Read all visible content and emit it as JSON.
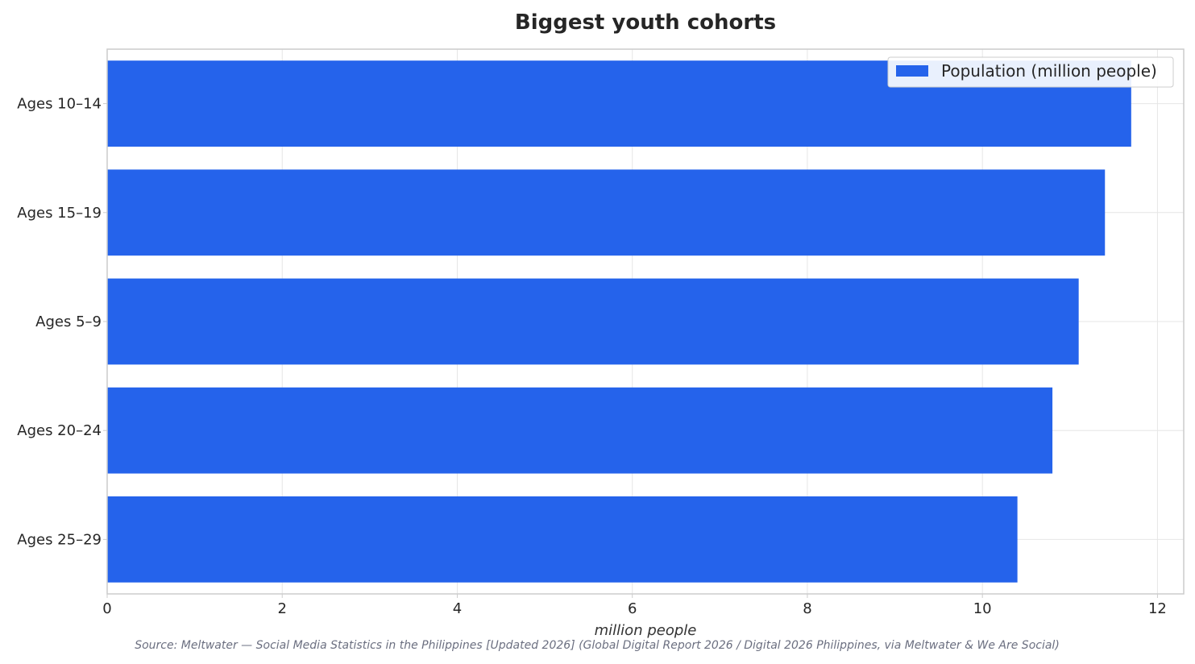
{
  "chart_data": {
    "type": "bar",
    "orientation": "horizontal",
    "title": "Biggest youth cohorts",
    "xlabel": "million people",
    "ylabel": "",
    "categories": [
      "Ages 10–14",
      "Ages 15–19",
      "Ages 5–9",
      "Ages 20–24",
      "Ages 25–29"
    ],
    "series": [
      {
        "name": "Population (million people)",
        "values": [
          11.7,
          11.4,
          11.1,
          10.8,
          10.4
        ]
      }
    ],
    "xlim": [
      0,
      12.3
    ],
    "xticks": [
      0,
      2,
      4,
      6,
      8,
      10,
      12
    ],
    "grid": true,
    "legend_position": "top-right",
    "colors": {
      "bar": "#2563eb",
      "grid": "#e6e6e6",
      "axis": "#cccccc"
    },
    "source": "Source: Meltwater — Social Media Statistics in the Philippines [Updated 2026] (Global Digital Report 2026 / Digital 2026 Philippines, via Meltwater & We Are Social)"
  }
}
